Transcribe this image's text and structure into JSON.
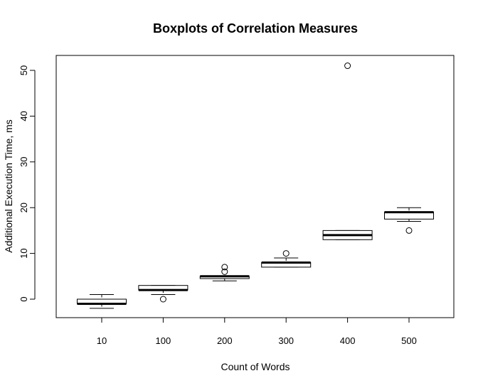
{
  "chart_data": {
    "type": "boxplot",
    "title": "Boxplots of Correlation Measures",
    "xlabel": "Count of Words",
    "ylabel": "Additional Execution Time, ms",
    "ylim": [
      -4,
      54
    ],
    "yticks": [
      0,
      10,
      20,
      30,
      40,
      50
    ],
    "grid": false,
    "categories": [
      "10",
      "100",
      "200",
      "300",
      "400",
      "500"
    ],
    "boxes": [
      {
        "category": "10",
        "whisker_low": -2,
        "q1": -1,
        "median": -1,
        "q3": 0,
        "whisker_high": 1,
        "outliers": []
      },
      {
        "category": "100",
        "whisker_low": 1,
        "q1": 2,
        "median": 2,
        "q3": 3,
        "whisker_high": 3,
        "outliers": [
          0
        ]
      },
      {
        "category": "200",
        "whisker_low": 4,
        "q1": 4.5,
        "median": 5,
        "q3": 5,
        "whisker_high": 5,
        "outliers": [
          6,
          7
        ]
      },
      {
        "category": "300",
        "whisker_low": 7,
        "q1": 7,
        "median": 8,
        "q3": 8,
        "whisker_high": 9,
        "outliers": [
          10
        ]
      },
      {
        "category": "400",
        "whisker_low": 13,
        "q1": 13,
        "median": 14,
        "q3": 15,
        "whisker_high": 15,
        "outliers": [
          51
        ]
      },
      {
        "category": "500",
        "whisker_low": 17,
        "q1": 17.5,
        "median": 19,
        "q3": 19,
        "whisker_high": 20,
        "outliers": [
          15
        ]
      }
    ]
  }
}
